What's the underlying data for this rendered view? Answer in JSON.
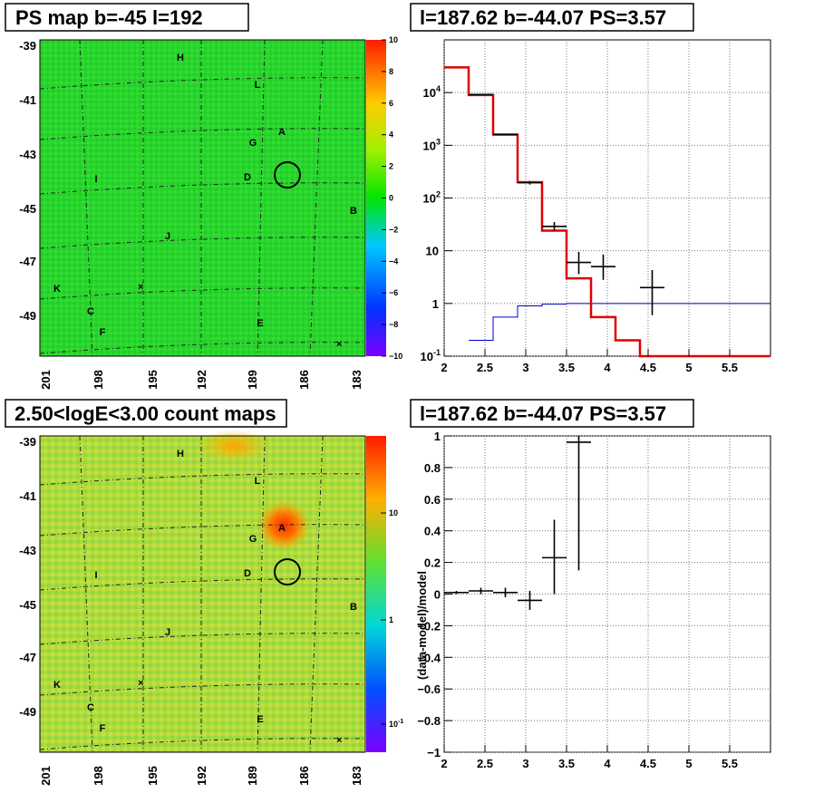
{
  "colors": {
    "model": "#e00000",
    "data": "#000000",
    "background_model": "#0000cc"
  },
  "panels": {
    "tl": {
      "title": "PS map b=-45 l=192"
    },
    "tr": {
      "title": "l=187.62 b=-44.07 PS=3.57"
    },
    "bl": {
      "title": "2.50<logE<3.00 count maps"
    },
    "br": {
      "title": "l=187.62 b=-44.07 PS=3.57"
    }
  },
  "chart_data": [
    {
      "type": "heatmap",
      "title": "PS map b=-45 l=192",
      "xlabel": "",
      "ylabel": "",
      "x_ticks": [
        "201",
        "198",
        "195",
        "192",
        "189",
        "186",
        "183"
      ],
      "y_ticks": [
        "-39",
        "-41",
        "-43",
        "-45",
        "-47",
        "-49"
      ],
      "colorbar": {
        "range": [
          -10,
          10
        ],
        "ticks": [
          "10",
          "8",
          "6",
          "4",
          "2",
          "0",
          "−2",
          "−4",
          "−6",
          "−8",
          "−10"
        ]
      },
      "source_labels": [
        "H",
        "L",
        "A",
        "G",
        "D",
        "I",
        "B",
        "J",
        "K",
        "C",
        "F",
        "E"
      ],
      "marker": {
        "l": 187.62,
        "b": -44.07
      }
    },
    {
      "type": "line",
      "title": "l=187.62 b=-44.07 PS=3.57",
      "xlabel": "",
      "ylabel": "",
      "xlim": [
        2,
        6
      ],
      "ylim": [
        0.1,
        100000
      ],
      "yscale": "log",
      "x_ticks": [
        "2",
        "2.5",
        "3",
        "3.5",
        "4",
        "4.5",
        "5",
        "5.5"
      ],
      "y_ticks": [
        "10^-1",
        "1",
        "10",
        "10^2",
        "10^3",
        "10^4"
      ],
      "grid": true,
      "model_steps": [
        {
          "x0": 2.0,
          "x1": 2.3,
          "y": 30000
        },
        {
          "x0": 2.3,
          "x1": 2.6,
          "y": 9000
        },
        {
          "x0": 2.6,
          "x1": 2.9,
          "y": 1600
        },
        {
          "x0": 2.9,
          "x1": 3.2,
          "y": 200
        },
        {
          "x0": 3.2,
          "x1": 3.5,
          "y": 24
        },
        {
          "x0": 3.5,
          "x1": 3.8,
          "y": 3.0
        },
        {
          "x0": 3.8,
          "x1": 4.1,
          "y": 0.55
        },
        {
          "x0": 4.1,
          "x1": 4.4,
          "y": 0.2
        },
        {
          "x0": 4.4,
          "x1": 6.0,
          "y": 0.1
        }
      ],
      "background_steps": [
        {
          "x0": 2.3,
          "x1": 2.6,
          "y": 0.2
        },
        {
          "x0": 2.6,
          "x1": 2.9,
          "y": 0.55
        },
        {
          "x0": 2.9,
          "x1": 3.2,
          "y": 0.9
        },
        {
          "x0": 3.2,
          "x1": 3.5,
          "y": 0.97
        },
        {
          "x0": 3.5,
          "x1": 6.0,
          "y": 1.0
        }
      ],
      "data_points": [
        {
          "x": 2.45,
          "xerr": 0.15,
          "y": 9200,
          "ylo": 9000,
          "yhi": 9400
        },
        {
          "x": 2.75,
          "xerr": 0.15,
          "y": 1600,
          "ylo": 1550,
          "yhi": 1650
        },
        {
          "x": 3.05,
          "xerr": 0.15,
          "y": 195,
          "ylo": 180,
          "yhi": 210
        },
        {
          "x": 3.35,
          "xerr": 0.15,
          "y": 29,
          "ylo": 24,
          "yhi": 35
        },
        {
          "x": 3.65,
          "xerr": 0.15,
          "y": 6,
          "ylo": 3.6,
          "yhi": 9.5
        },
        {
          "x": 3.95,
          "xerr": 0.15,
          "y": 5,
          "ylo": 2.8,
          "yhi": 8.5
        },
        {
          "x": 4.55,
          "xerr": 0.15,
          "y": 2,
          "ylo": 0.6,
          "yhi": 4.3
        }
      ]
    },
    {
      "type": "heatmap",
      "title": "2.50<logE<3.00 count maps",
      "xlabel": "",
      "ylabel": "",
      "x_ticks": [
        "201",
        "198",
        "195",
        "192",
        "189",
        "186",
        "183"
      ],
      "y_ticks": [
        "-39",
        "-41",
        "-43",
        "-45",
        "-47",
        "-49"
      ],
      "colorbar": {
        "scale": "log",
        "ticks": [
          "10",
          "1",
          "10^-1"
        ]
      },
      "source_labels": [
        "H",
        "L",
        "A",
        "G",
        "D",
        "I",
        "B",
        "J",
        "K",
        "C",
        "F",
        "E"
      ],
      "marker": {
        "l": 187.62,
        "b": -44.07
      }
    },
    {
      "type": "scatter",
      "title": "l=187.62 b=-44.07 PS=3.57",
      "xlabel": "",
      "ylabel": "(data-model)/model",
      "xlim": [
        2,
        6
      ],
      "ylim": [
        -1,
        1
      ],
      "x_ticks": [
        "2",
        "2.5",
        "3",
        "3.5",
        "4",
        "4.5",
        "5",
        "5.5"
      ],
      "y_ticks": [
        "1",
        "0.8",
        "0.6",
        "0.4",
        "0.2",
        "0",
        "−0.2",
        "−0.4",
        "−0.6",
        "−0.8",
        "−1"
      ],
      "grid": true,
      "data_points": [
        {
          "x": 2.15,
          "xerr": 0.15,
          "y": 0.01,
          "ylo": 0.0,
          "yhi": 0.02
        },
        {
          "x": 2.45,
          "xerr": 0.15,
          "y": 0.02,
          "ylo": 0.0,
          "yhi": 0.04
        },
        {
          "x": 2.75,
          "xerr": 0.15,
          "y": 0.01,
          "ylo": -0.02,
          "yhi": 0.04
        },
        {
          "x": 3.05,
          "xerr": 0.15,
          "y": -0.04,
          "ylo": -0.1,
          "yhi": 0.02
        },
        {
          "x": 3.35,
          "xerr": 0.15,
          "y": 0.23,
          "ylo": 0.0,
          "yhi": 0.47
        },
        {
          "x": 3.65,
          "xerr": 0.15,
          "y": 0.96,
          "ylo": 0.15,
          "yhi": 1.0
        }
      ]
    }
  ]
}
